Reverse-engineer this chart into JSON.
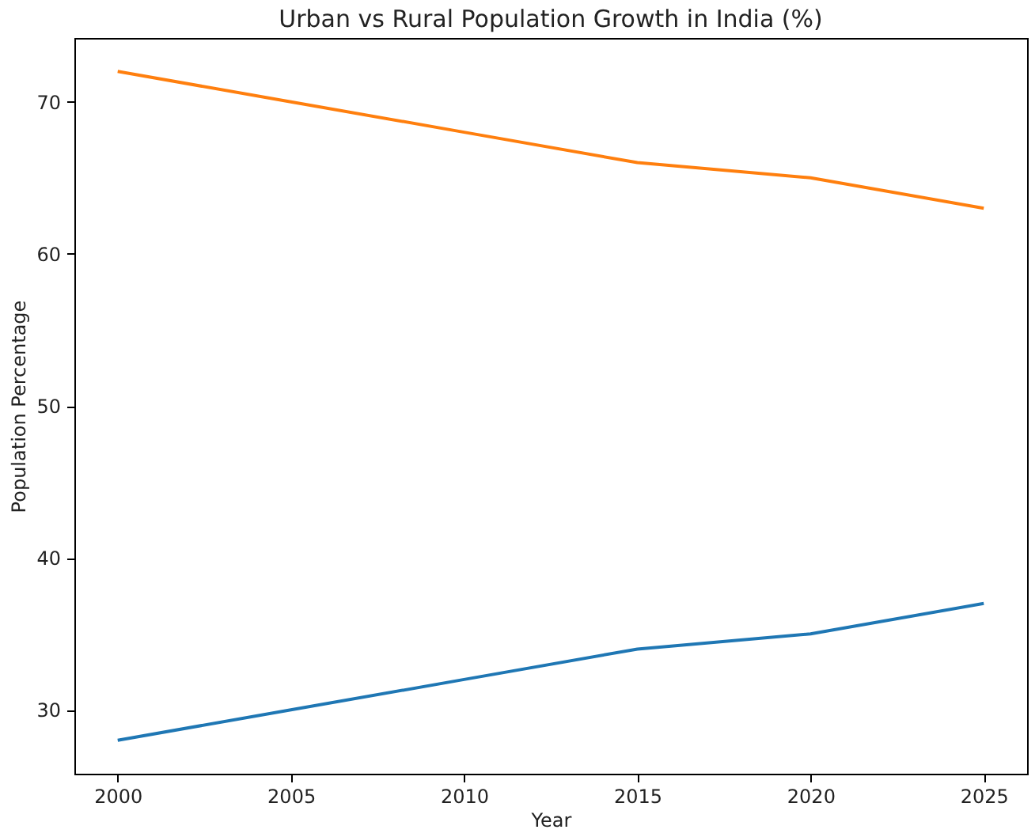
{
  "chart_data": {
    "type": "line",
    "title": "Urban vs Rural Population Growth in India (%)",
    "xlabel": "Year",
    "ylabel": "Population Percentage",
    "x": [
      2000,
      2005,
      2010,
      2015,
      2020,
      2025
    ],
    "series": [
      {
        "color": "#1f77b4",
        "values": [
          28,
          30,
          32,
          34,
          35,
          37
        ]
      },
      {
        "color": "#ff7f0e",
        "values": [
          72,
          70,
          68,
          66,
          65,
          63
        ]
      }
    ],
    "xlim": [
      1998.75,
      2026.25
    ],
    "xticks": [
      2000,
      2005,
      2010,
      2015,
      2020,
      2025
    ],
    "ylim": [
      25.8,
      74.2
    ],
    "yticks": [
      30,
      40,
      50,
      60,
      70
    ],
    "grid": false,
    "legend": false,
    "marker": "none",
    "line_style": "solid"
  }
}
